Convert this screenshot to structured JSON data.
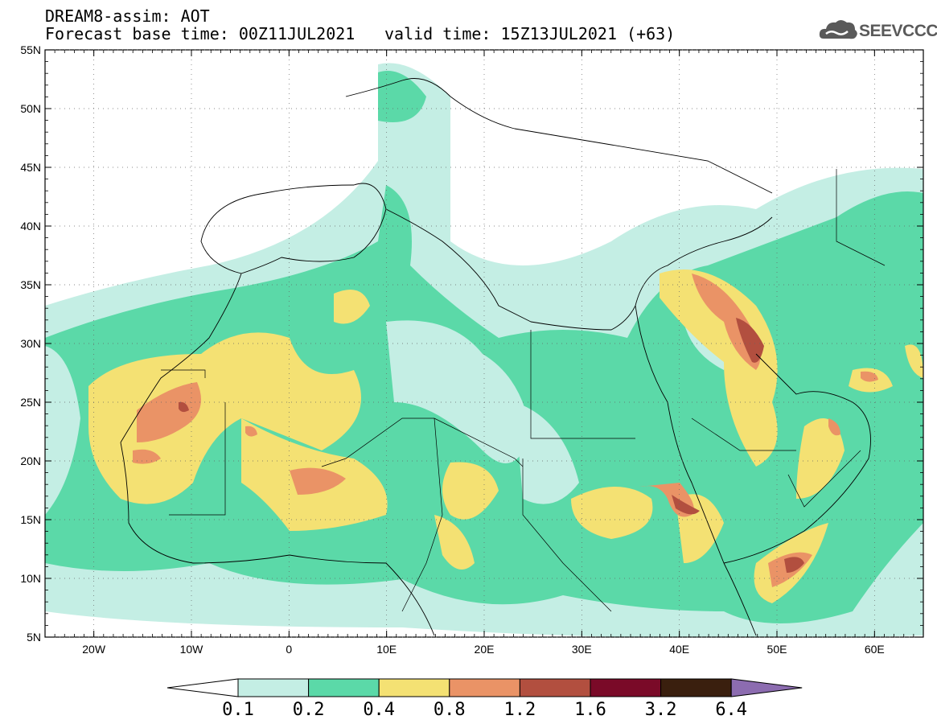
{
  "header": {
    "title": "DREAM8-assim: AOT",
    "base_time": "Forecast base time: 00Z11JUL2021",
    "valid_time": "valid time: 15Z13JUL2021 (+63)"
  },
  "logo": {
    "text": "SEEVCCC",
    "icon": "cloud-logo-icon"
  },
  "map": {
    "lat_labels": [
      "55N",
      "50N",
      "45N",
      "40N",
      "35N",
      "30N",
      "25N",
      "20N",
      "15N",
      "10N",
      "5N"
    ],
    "lat_values": [
      55,
      50,
      45,
      40,
      35,
      30,
      25,
      20,
      15,
      10,
      5
    ],
    "lon_labels": [
      "20W",
      "10W",
      "0",
      "10E",
      "20E",
      "30E",
      "40E",
      "50E",
      "60E"
    ],
    "lon_values": [
      -20,
      -10,
      0,
      10,
      20,
      30,
      40,
      50,
      60
    ],
    "lon_range": [
      -25,
      65
    ],
    "lat_range": [
      5,
      55
    ]
  },
  "colorbar": {
    "labels": [
      "0.1",
      "0.2",
      "0.4",
      "0.8",
      "1.2",
      "1.6",
      "3.2",
      "6.4"
    ],
    "colors": [
      "#c4eee4",
      "#5bd9a8",
      "#f4e173",
      "#ea9366",
      "#b24f3f",
      "#7a0a28",
      "#3a1f0e"
    ],
    "under_color": "#ffffff",
    "over_color": "#8c6cb0"
  }
}
